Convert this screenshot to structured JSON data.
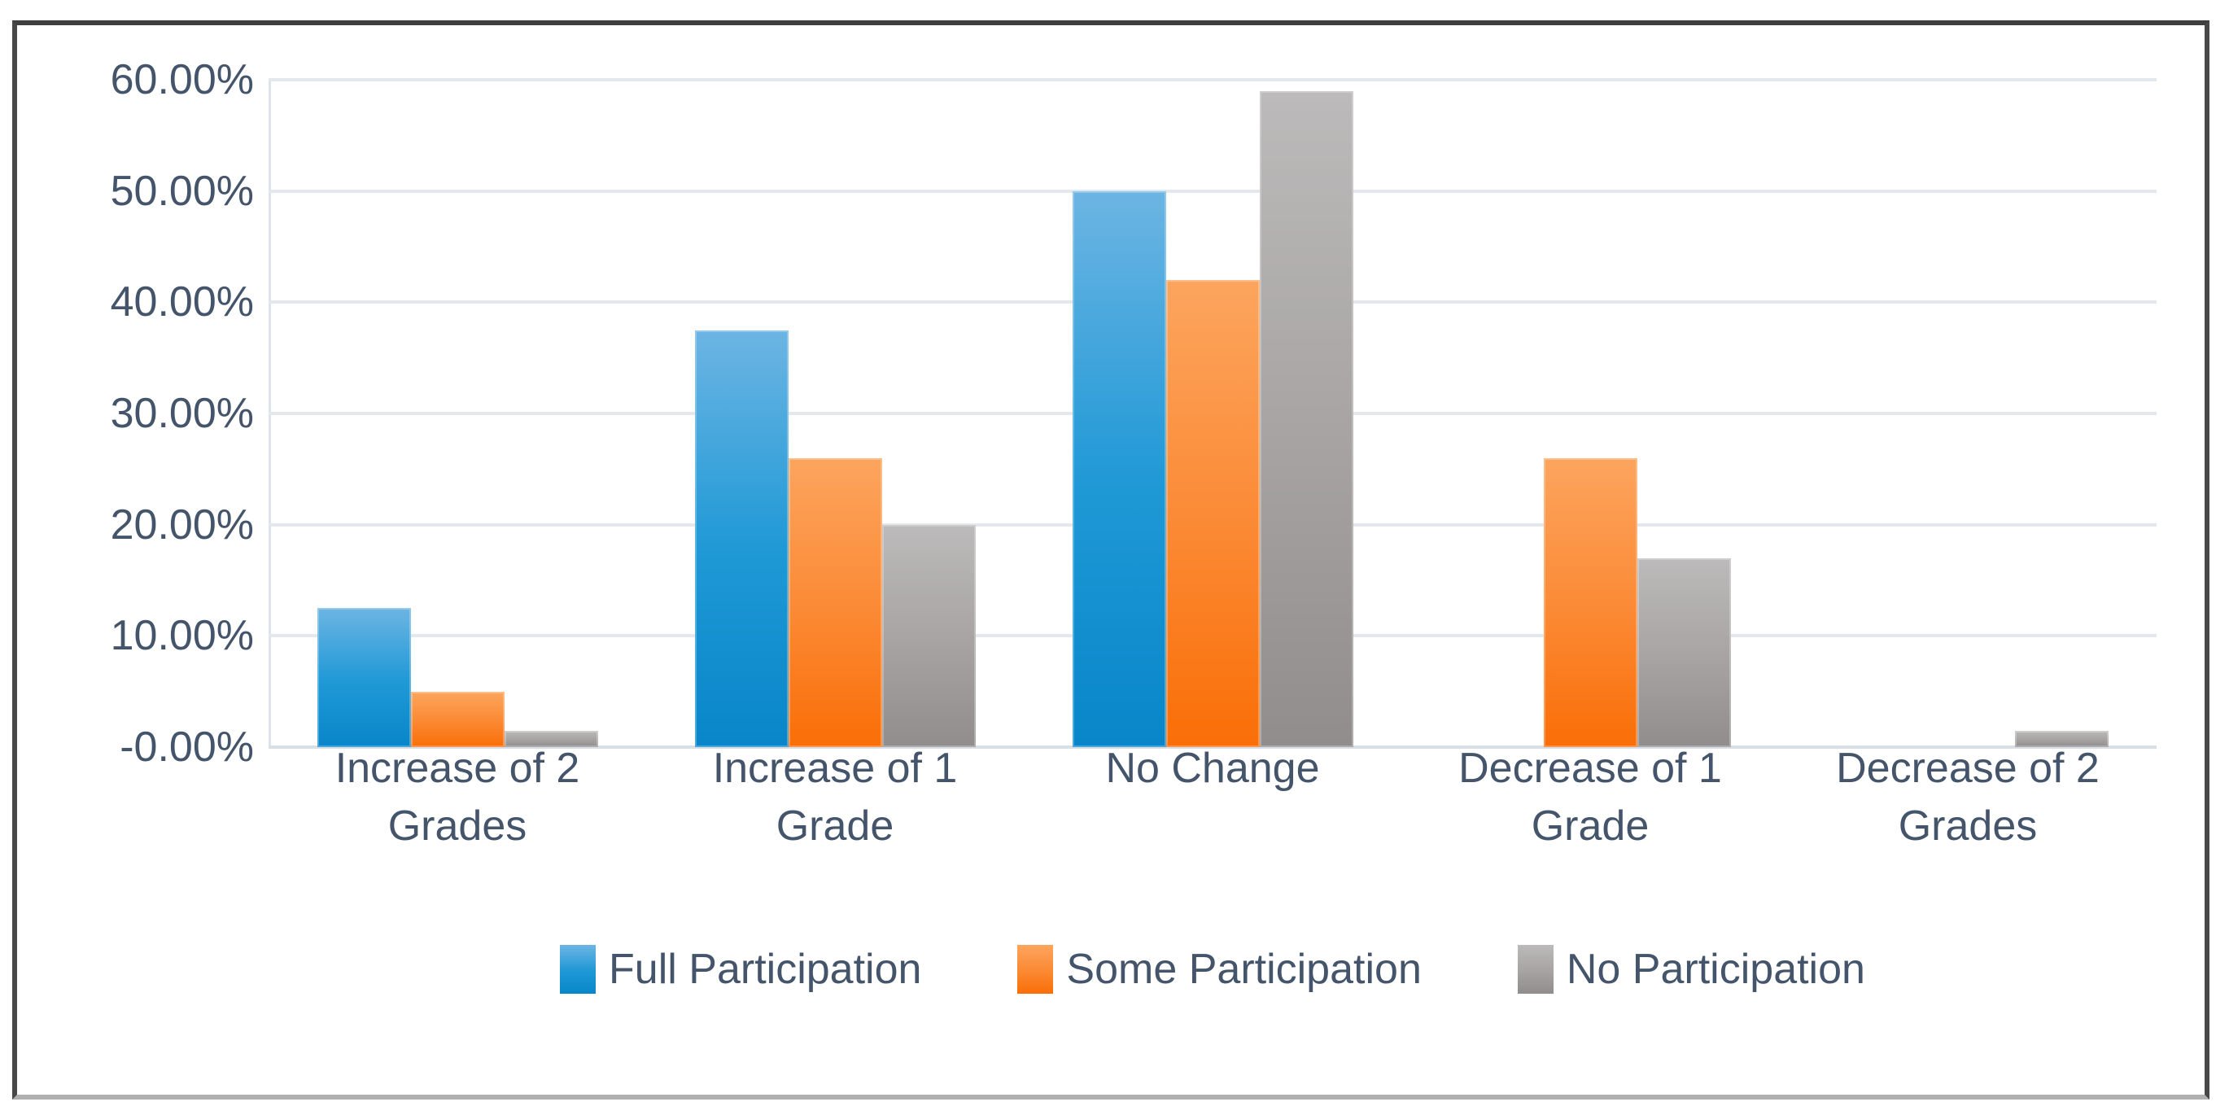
{
  "chart_data": {
    "type": "bar",
    "title": "",
    "xlabel": "",
    "ylabel": "",
    "categories": [
      "Increase of 2 Grades",
      "Increase of 1 Grade",
      "No Change",
      "Decrease of 1 Grade",
      "Decrease of 2 Grades"
    ],
    "series": [
      {
        "name": "Full Participation",
        "values": [
          12.5,
          37.5,
          50,
          0,
          0
        ],
        "color_top": "#6CB5E3",
        "color_mid": "#2099D6",
        "color_bottom": "#0886C9"
      },
      {
        "name": "Some Participation",
        "values": [
          5,
          26,
          42,
          26,
          0
        ],
        "color_top": "#FCA55E",
        "color_mid": "#FB8A35",
        "color_bottom": "#FA6E07"
      },
      {
        "name": "No Participation",
        "values": [
          1.5,
          20,
          59,
          17,
          1.5
        ],
        "color_top": "#BCBABA",
        "color_mid": "#A7A4A3",
        "color_bottom": "#908D8C"
      }
    ],
    "y_axis": {
      "min": 0,
      "max": 60,
      "ticks": [
        {
          "value": 60,
          "label": "60.00%"
        },
        {
          "value": 50,
          "label": "50.00%"
        },
        {
          "value": 40,
          "label": "40.00%"
        },
        {
          "value": 30,
          "label": "30.00%"
        },
        {
          "value": 20,
          "label": "20.00%"
        },
        {
          "value": 10,
          "label": "10.00%"
        },
        {
          "value": 0,
          "label": "-0.00%"
        }
      ]
    },
    "grid": true,
    "legend_position": "bottom",
    "colors": {
      "label_text": "#44546A",
      "gridline": "#E2E8EE",
      "frame_border_dark": "#484848",
      "frame_border_bottom": "#B0B0B0",
      "background": "#FFFFFF"
    }
  }
}
